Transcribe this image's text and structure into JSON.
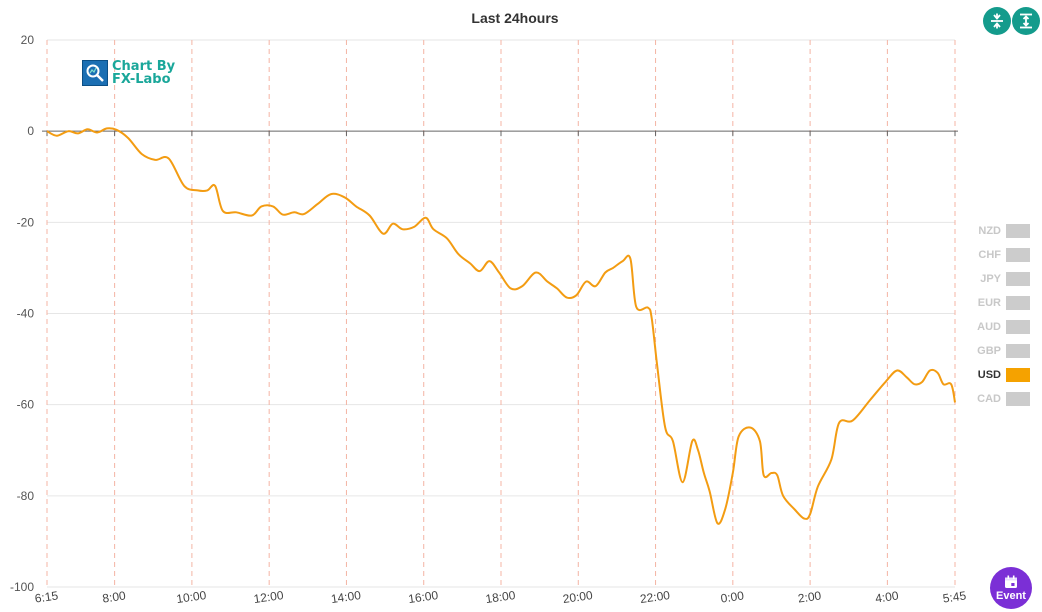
{
  "title": "Last 24hours",
  "logo": {
    "line1": "Chart By",
    "line2": "FX-Labo"
  },
  "buttons": {
    "collapse_icon": "compress-vertical-icon",
    "expand_icon": "expand-vertical-icon",
    "event_icon": "calendar-icon",
    "event_label": "Event"
  },
  "legend": {
    "items": [
      {
        "label": "NZD",
        "active": false
      },
      {
        "label": "CHF",
        "active": false
      },
      {
        "label": "JPY",
        "active": false
      },
      {
        "label": "EUR",
        "active": false
      },
      {
        "label": "AUD",
        "active": false
      },
      {
        "label": "GBP",
        "active": false
      },
      {
        "label": "USD",
        "active": true
      },
      {
        "label": "CAD",
        "active": false
      }
    ]
  },
  "colors": {
    "series": "#f39c12",
    "legend_active": "#f5a200",
    "legend_inactive": "#cccccc",
    "button_teal": "#149b8c",
    "event_purple": "#7b2fd6"
  },
  "chart_data": {
    "type": "line",
    "title": "Last 24hours",
    "ylim": [
      -100,
      20
    ],
    "yticks": [
      20,
      0,
      -20,
      -40,
      -60,
      -80,
      -100
    ],
    "xlim": [
      0,
      23.5
    ],
    "xticks": [
      {
        "label": "6:15",
        "x": 0
      },
      {
        "label": "8:00",
        "x": 1.75
      },
      {
        "label": "10:00",
        "x": 3.75
      },
      {
        "label": "12:00",
        "x": 5.75
      },
      {
        "label": "14:00",
        "x": 7.75
      },
      {
        "label": "16:00",
        "x": 9.75
      },
      {
        "label": "18:00",
        "x": 11.75
      },
      {
        "label": "20:00",
        "x": 13.75
      },
      {
        "label": "22:00",
        "x": 15.75
      },
      {
        "label": "0:00",
        "x": 17.75
      },
      {
        "label": "2:00",
        "x": 19.75
      },
      {
        "label": "4:00",
        "x": 21.75
      },
      {
        "label": "5:45",
        "x": 23.5
      }
    ],
    "grid": true,
    "series": [
      {
        "name": "USD",
        "points": [
          [
            0,
            0
          ],
          [
            0.25,
            -1
          ],
          [
            0.55,
            0
          ],
          [
            0.8,
            -0.5
          ],
          [
            1.05,
            0.4
          ],
          [
            1.3,
            -0.3
          ],
          [
            1.55,
            0.6
          ],
          [
            1.8,
            0.3
          ],
          [
            2.1,
            -1.5
          ],
          [
            2.45,
            -5
          ],
          [
            2.8,
            -6.3
          ],
          [
            3.15,
            -6
          ],
          [
            3.55,
            -12
          ],
          [
            3.9,
            -13
          ],
          [
            4.15,
            -13
          ],
          [
            4.35,
            -12
          ],
          [
            4.55,
            -17.5
          ],
          [
            4.9,
            -17.8
          ],
          [
            5.3,
            -18.5
          ],
          [
            5.55,
            -16.5
          ],
          [
            5.85,
            -16.5
          ],
          [
            6.1,
            -18.3
          ],
          [
            6.4,
            -17.8
          ],
          [
            6.65,
            -18.2
          ],
          [
            7.0,
            -16
          ],
          [
            7.35,
            -13.8
          ],
          [
            7.7,
            -14.5
          ],
          [
            8.0,
            -16.5
          ],
          [
            8.35,
            -18.5
          ],
          [
            8.7,
            -22.5
          ],
          [
            8.95,
            -20.3
          ],
          [
            9.2,
            -21.5
          ],
          [
            9.5,
            -21
          ],
          [
            9.8,
            -19
          ],
          [
            10.0,
            -21.5
          ],
          [
            10.35,
            -23.5
          ],
          [
            10.65,
            -27
          ],
          [
            10.95,
            -29
          ],
          [
            11.2,
            -30.7
          ],
          [
            11.45,
            -28.5
          ],
          [
            11.7,
            -31
          ],
          [
            12.0,
            -34.5
          ],
          [
            12.3,
            -34
          ],
          [
            12.65,
            -31
          ],
          [
            12.95,
            -33
          ],
          [
            13.2,
            -34.5
          ],
          [
            13.45,
            -36.5
          ],
          [
            13.7,
            -36
          ],
          [
            13.95,
            -33
          ],
          [
            14.2,
            -34
          ],
          [
            14.45,
            -31
          ],
          [
            14.65,
            -30
          ],
          [
            14.9,
            -28.5
          ],
          [
            15.1,
            -28
          ],
          [
            15.25,
            -38.5
          ],
          [
            15.55,
            -38.7
          ],
          [
            15.65,
            -41
          ],
          [
            15.8,
            -52
          ],
          [
            16.0,
            -65
          ],
          [
            16.2,
            -68
          ],
          [
            16.45,
            -77
          ],
          [
            16.7,
            -68
          ],
          [
            16.85,
            -70
          ],
          [
            17.0,
            -75
          ],
          [
            17.15,
            -79
          ],
          [
            17.35,
            -86
          ],
          [
            17.55,
            -83
          ],
          [
            17.75,
            -75
          ],
          [
            17.9,
            -67
          ],
          [
            18.2,
            -65
          ],
          [
            18.45,
            -68
          ],
          [
            18.55,
            -75.5
          ],
          [
            18.75,
            -75
          ],
          [
            18.9,
            -75.5
          ],
          [
            19.05,
            -80
          ],
          [
            19.35,
            -83
          ],
          [
            19.6,
            -85
          ],
          [
            19.75,
            -84
          ],
          [
            19.95,
            -78
          ],
          [
            20.3,
            -72
          ],
          [
            20.5,
            -64
          ],
          [
            20.85,
            -63.5
          ],
          [
            21.3,
            -59
          ],
          [
            21.7,
            -55
          ],
          [
            22.0,
            -52.5
          ],
          [
            22.25,
            -54
          ],
          [
            22.45,
            -55.5
          ],
          [
            22.65,
            -55
          ],
          [
            22.85,
            -52.5
          ],
          [
            23.05,
            -53
          ],
          [
            23.2,
            -55.5
          ],
          [
            23.4,
            -55.5
          ],
          [
            23.5,
            -59.5
          ]
        ]
      }
    ]
  }
}
